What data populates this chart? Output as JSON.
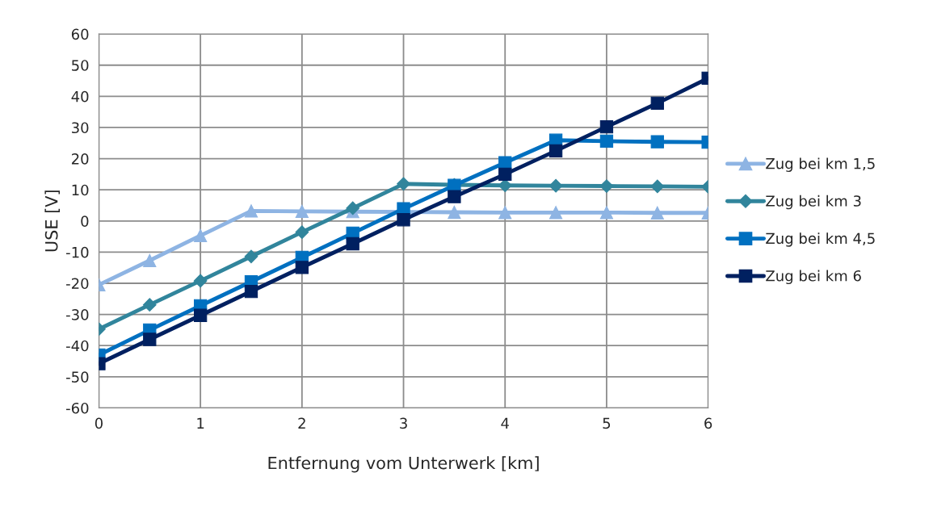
{
  "chart_data": {
    "type": "line",
    "xlabel": "Entfernung vom Unterwerk [km]",
    "ylabel": "USE [V]",
    "x": [
      0,
      0.5,
      1,
      1.5,
      2,
      2.5,
      3,
      3.5,
      4,
      4.5,
      5,
      5.5,
      6
    ],
    "series": [
      {
        "name": "Zug bei km 1,5",
        "color": "#8eb4e3",
        "marker": "triangle",
        "values": [
          -20.5,
          -12.7,
          -4.7,
          3.2,
          3.1,
          3.0,
          null,
          2.8,
          2.7,
          2.7,
          2.7,
          2.6,
          2.6
        ]
      },
      {
        "name": "Zug bei km 3",
        "color": "#31859c",
        "marker": "diamond",
        "values": [
          -34.7,
          -26.9,
          -19.2,
          -11.4,
          -3.6,
          4.1,
          11.9,
          11.6,
          11.4,
          11.3,
          11.2,
          11.1,
          11.0
        ]
      },
      {
        "name": "Zug bei km 4,5",
        "color": "#0070c0",
        "marker": "square",
        "values": [
          -43.0,
          -35.0,
          -27.2,
          -19.5,
          -11.7,
          -3.9,
          3.9,
          11.4,
          18.7,
          25.9,
          25.6,
          25.4,
          25.3
        ]
      },
      {
        "name": "Zug bei km 6",
        "color": "#002060",
        "marker": "square",
        "values": [
          -45.8,
          -38.0,
          -30.3,
          -22.6,
          -14.9,
          -7.3,
          0.4,
          7.8,
          15.0,
          22.5,
          30.2,
          37.8,
          45.8
        ]
      }
    ],
    "xlim": [
      0,
      6
    ],
    "xticks": [
      0,
      1,
      2,
      3,
      4,
      5,
      6
    ],
    "ylim": [
      -60,
      60
    ],
    "yticks": [
      -60,
      -50,
      -40,
      -30,
      -20,
      -10,
      0,
      10,
      20,
      30,
      40,
      50,
      60
    ],
    "grid": true,
    "legend": "right",
    "line_style": "solid"
  }
}
